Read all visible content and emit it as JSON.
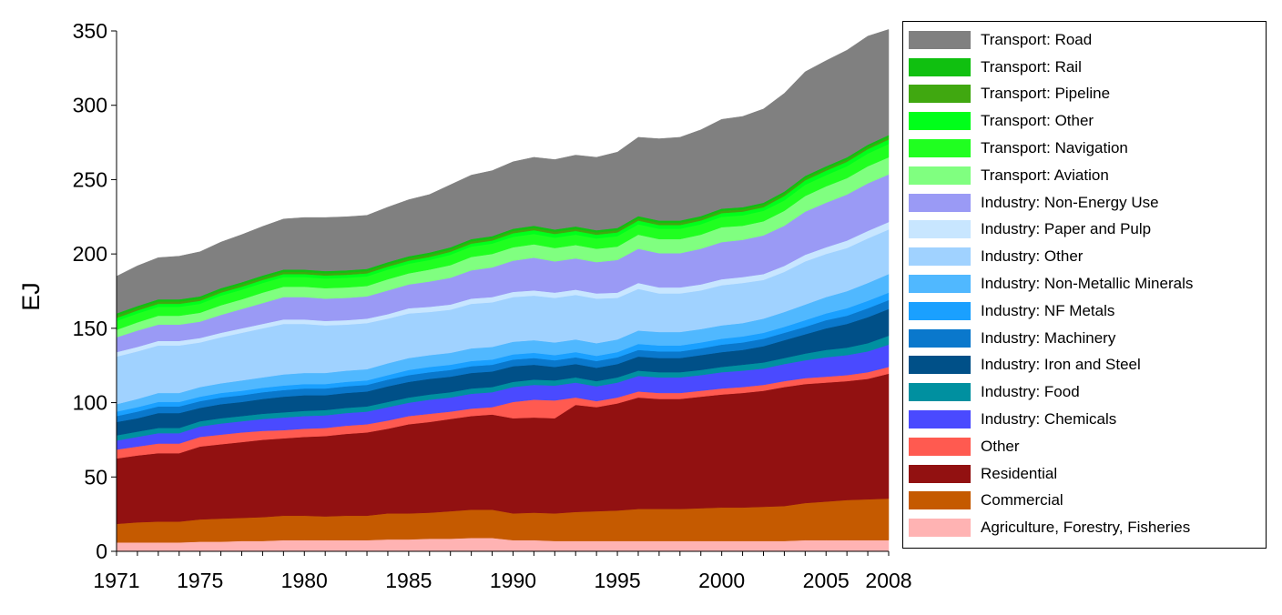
{
  "chart_data": {
    "type": "area",
    "stacked": true,
    "title": "",
    "xlabel": "",
    "ylabel": "EJ",
    "ylim": [
      0,
      350
    ],
    "yticks": [
      0,
      50,
      100,
      150,
      200,
      250,
      300,
      350
    ],
    "xlim": [
      1971,
      2008
    ],
    "xticks": [
      1971,
      1975,
      1980,
      1985,
      1990,
      1995,
      2000,
      2005,
      2008
    ],
    "x": [
      1971,
      1972,
      1973,
      1974,
      1975,
      1976,
      1977,
      1978,
      1979,
      1980,
      1981,
      1982,
      1983,
      1984,
      1985,
      1986,
      1987,
      1988,
      1989,
      1990,
      1991,
      1992,
      1993,
      1994,
      1995,
      1996,
      1997,
      1998,
      1999,
      2000,
      2001,
      2002,
      2003,
      2004,
      2005,
      2006,
      2007,
      2008
    ],
    "series": [
      {
        "name": "Agriculture, Forestry, Fisheries",
        "color": "#ffb3b3",
        "values": [
          6,
          6,
          6,
          6,
          6.5,
          6.5,
          7,
          7,
          7.5,
          7.5,
          7.5,
          7.5,
          7.5,
          8,
          8,
          8.5,
          8.5,
          9,
          9,
          7.5,
          7.5,
          7,
          7,
          7,
          7,
          7,
          7,
          7,
          7,
          7,
          7,
          7,
          7,
          7.5,
          7.5,
          7.5,
          7.5,
          7.5
        ]
      },
      {
        "name": "Commercial",
        "color": "#c55a00",
        "values": [
          12.5,
          13.5,
          14,
          14,
          15,
          15.5,
          15.5,
          16,
          16.5,
          16.5,
          16,
          16.5,
          16.5,
          17.5,
          17.5,
          17.5,
          18.5,
          19,
          19,
          18,
          18.5,
          18.5,
          19.5,
          20,
          20.5,
          21.5,
          21.5,
          21.5,
          22,
          22.5,
          22.5,
          23,
          23.5,
          25,
          26,
          27,
          27.5,
          28
        ]
      },
      {
        "name": "Residential",
        "color": "#921111",
        "values": [
          44,
          45,
          46,
          46,
          49,
          50,
          51,
          52,
          52,
          53,
          54,
          55,
          56,
          57,
          60,
          61,
          62,
          63,
          64,
          64,
          64,
          64,
          72,
          70,
          72,
          75,
          74,
          74,
          75,
          76,
          77,
          78,
          80,
          80,
          80,
          80,
          81,
          84
        ]
      },
      {
        "name": "Other",
        "color": "#ff5a50",
        "values": [
          6,
          6,
          6.5,
          6.5,
          6.5,
          6.5,
          6.5,
          6,
          5.5,
          5.5,
          5.5,
          5.5,
          5.5,
          5.5,
          5.5,
          5.5,
          5,
          5,
          5,
          11,
          12,
          12,
          5,
          4,
          4,
          4,
          4,
          4,
          4,
          4,
          4,
          4,
          4,
          4,
          4,
          4,
          4.5,
          4.5
        ]
      },
      {
        "name": "Industry: Chemicals",
        "color": "#4a4aff",
        "values": [
          6,
          6.5,
          7,
          7,
          7,
          7.5,
          7.5,
          8,
          8.5,
          8.5,
          8.5,
          8.5,
          8.5,
          9,
          9,
          9.5,
          9.5,
          10,
          10,
          10,
          10,
          10,
          10,
          10,
          10,
          10.5,
          10.5,
          10.5,
          10.5,
          11,
          11,
          11,
          11.5,
          12,
          13,
          13.5,
          14,
          15
        ]
      },
      {
        "name": "Industry: Food",
        "color": "#0090a0",
        "values": [
          3.5,
          3.5,
          3.5,
          3.5,
          3.5,
          3.5,
          3.5,
          3.5,
          3.5,
          3.5,
          3.5,
          3.5,
          3.5,
          3.5,
          3.5,
          3.5,
          3.5,
          3.5,
          3.5,
          3.5,
          3.5,
          3.5,
          3.5,
          3.5,
          3.5,
          3.5,
          3.5,
          3.5,
          3.5,
          3.5,
          4,
          4,
          4,
          4.5,
          5,
          5,
          5.5,
          6
        ]
      },
      {
        "name": "Industry: Iron and Steel",
        "color": "#005088",
        "values": [
          9,
          9,
          10,
          10,
          9,
          9.5,
          9.5,
          10,
          10.5,
          10.5,
          10,
          10,
          10,
          10.5,
          10.5,
          10.5,
          10.5,
          10.5,
          10.5,
          10.5,
          10,
          9,
          9,
          9,
          9,
          9.5,
          9.5,
          9.5,
          10,
          10,
          10,
          11,
          12,
          13,
          14.5,
          16,
          17.5,
          18
        ]
      },
      {
        "name": "Industry: Machinery",
        "color": "#0a78cc",
        "values": [
          4,
          4.5,
          4.5,
          4.5,
          4.5,
          4.5,
          4.5,
          4.5,
          4.5,
          4.5,
          4.5,
          4.5,
          4.5,
          4.5,
          4.5,
          4.5,
          4.5,
          4.5,
          4.5,
          4.5,
          4.5,
          4.5,
          4.5,
          4.5,
          4.5,
          4.5,
          4.5,
          4.5,
          4.5,
          5,
          5,
          5,
          5,
          5,
          5.5,
          5.5,
          6,
          6
        ]
      },
      {
        "name": "Industry: NF Metals",
        "color": "#1aa0ff",
        "values": [
          3,
          3,
          3,
          3,
          3,
          3,
          3,
          3,
          3,
          3,
          3,
          3,
          3,
          3,
          3.5,
          3.5,
          3.5,
          3.5,
          3.5,
          3.5,
          3.5,
          3.5,
          3.5,
          3.5,
          3.5,
          4,
          4,
          4,
          4,
          4,
          4,
          4,
          4,
          4.5,
          4.5,
          5,
          5,
          5
        ]
      },
      {
        "name": "Industry: Non-Metallic Minerals",
        "color": "#50b8ff",
        "values": [
          5,
          5.5,
          6,
          6,
          6.5,
          6.5,
          7,
          7,
          7.5,
          7.5,
          7.5,
          7.5,
          7.5,
          8,
          8,
          8,
          8,
          8.5,
          8.5,
          8.5,
          8.5,
          8.5,
          8.5,
          8.5,
          8.5,
          9,
          9,
          9,
          9,
          9,
          9,
          9.5,
          10,
          10.5,
          11,
          11.5,
          12,
          12.5
        ]
      },
      {
        "name": "Industry: Other",
        "color": "#a0d2ff",
        "values": [
          32,
          32,
          32,
          32,
          30,
          31,
          32,
          33,
          34,
          33,
          32,
          31,
          31,
          30,
          30,
          29,
          29,
          30,
          30,
          30,
          30,
          30,
          30,
          30,
          28,
          28,
          26,
          26,
          26,
          27,
          27,
          26,
          27,
          29,
          29,
          29,
          30,
          30
        ]
      },
      {
        "name": "Industry: Paper and Pulp",
        "color": "#c8e6ff",
        "values": [
          3,
          3,
          3,
          3,
          3,
          3,
          3,
          3,
          3,
          3,
          3,
          3,
          3,
          3,
          3.5,
          3.5,
          3.5,
          3.5,
          3.5,
          3.5,
          3.5,
          3.5,
          3.5,
          3.5,
          3.5,
          4,
          4,
          4,
          4,
          4,
          4,
          4,
          4,
          4.5,
          4.5,
          5,
          5,
          5
        ]
      },
      {
        "name": "Industry: Non-Energy Use",
        "color": "#9a9af5",
        "values": [
          10,
          11,
          11,
          11,
          11,
          12,
          13,
          14,
          15,
          15,
          15,
          15,
          15,
          16,
          16,
          17,
          18,
          19,
          20,
          21,
          22,
          21,
          21,
          21,
          22,
          23,
          23,
          23,
          24,
          25,
          25,
          26,
          27,
          29,
          30,
          31,
          32,
          32
        ]
      },
      {
        "name": "Transport: Aviation",
        "color": "#80ff80",
        "values": [
          5,
          5.5,
          6,
          6,
          6,
          6.5,
          6.5,
          7,
          7,
          7,
          7,
          7,
          7,
          7.5,
          7.5,
          8,
          8.5,
          9,
          9,
          9,
          9,
          9,
          9,
          9,
          9,
          9.5,
          9.5,
          9.5,
          9.5,
          10,
          9.5,
          9.5,
          10,
          10.5,
          11,
          11,
          11.5,
          11.5
        ]
      },
      {
        "name": "Transport: Navigation",
        "color": "#20ff20",
        "values": [
          6,
          6,
          6,
          6,
          6,
          6.5,
          6.5,
          6.5,
          6.5,
          6.5,
          6.5,
          6.5,
          6.5,
          6.5,
          6.5,
          6.5,
          7,
          7,
          7,
          7,
          7,
          7,
          7,
          7,
          7,
          7,
          7,
          7,
          7,
          7,
          7,
          7,
          7,
          7.5,
          7.5,
          8,
          8.5,
          9
        ]
      },
      {
        "name": "Transport: Other",
        "color": "#00ff1a",
        "values": [
          2,
          2,
          2,
          2,
          2,
          2,
          2,
          2,
          2,
          2,
          2,
          2,
          2,
          2,
          2,
          2,
          2,
          2,
          2,
          2.5,
          2.5,
          2.5,
          2.5,
          2.5,
          2.5,
          2.5,
          2.5,
          2.5,
          2.5,
          2.5,
          2.5,
          2.5,
          3,
          3,
          3,
          3,
          3,
          3
        ]
      },
      {
        "name": "Transport: Pipeline",
        "color": "#40a810",
        "values": [
          1.5,
          1.5,
          1.5,
          1.5,
          1.5,
          1.5,
          1.5,
          1.5,
          1.5,
          1.5,
          1.5,
          1.5,
          1.5,
          1.5,
          1.5,
          1.5,
          1.5,
          1.5,
          1.5,
          1.5,
          1.5,
          1.5,
          1.5,
          1.5,
          1.5,
          1.5,
          1.5,
          1.5,
          1.5,
          1.5,
          1.5,
          1.5,
          1.5,
          1.5,
          1.5,
          1.5,
          1.5,
          1.5
        ]
      },
      {
        "name": "Transport: Rail",
        "color": "#10c010",
        "values": [
          1.5,
          1.5,
          1.5,
          1.5,
          1.5,
          1.5,
          1.5,
          1.5,
          1.5,
          1.5,
          1.5,
          1.5,
          1.5,
          1.5,
          1.5,
          1.5,
          1.5,
          1.5,
          1.5,
          1.5,
          1.5,
          1.5,
          1.5,
          1.5,
          1.5,
          1.5,
          1.5,
          1.5,
          1.5,
          1.5,
          1.5,
          1.5,
          1.5,
          1.5,
          1.5,
          1.5,
          1.5,
          1.5
        ]
      },
      {
        "name": "Transport: Road",
        "color": "#808080",
        "values": [
          25,
          27,
          28,
          29,
          30,
          31,
          32,
          33,
          34,
          35,
          36,
          36,
          36,
          37,
          38,
          39,
          42,
          43,
          44,
          45,
          46,
          47,
          48,
          49,
          51,
          53,
          55,
          56,
          58,
          60,
          61,
          63,
          66,
          70,
          71,
          72,
          73,
          71
        ]
      }
    ]
  }
}
